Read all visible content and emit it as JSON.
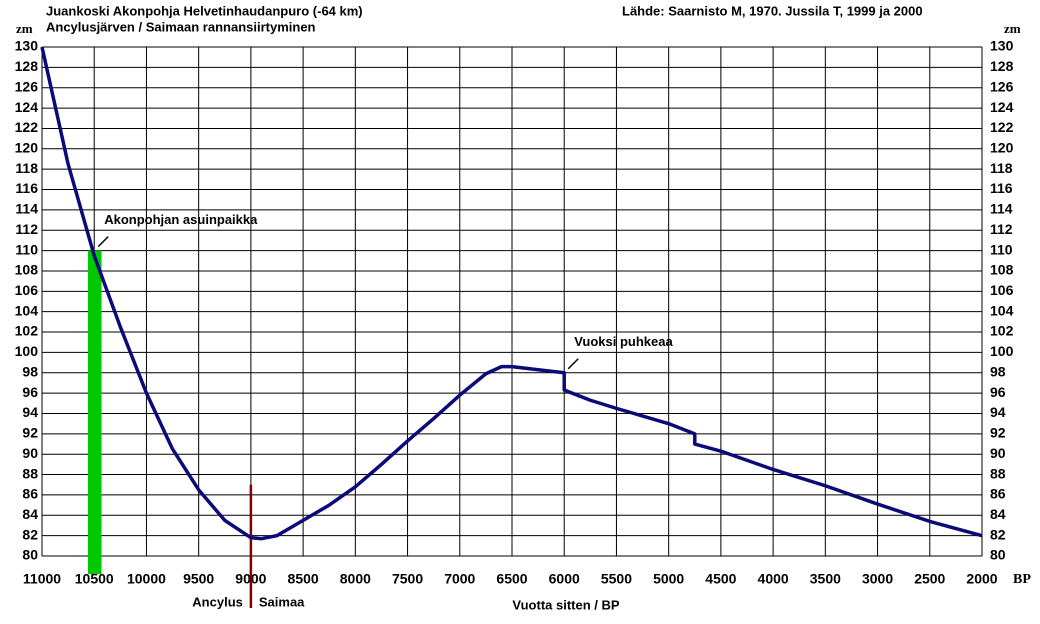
{
  "chart_data": {
    "type": "line",
    "title": "Juankoski Akonpohja Helvetinhaudanpuro (-64 km)",
    "subtitle": "Ancylusjärven / Saimaan rannansiirtyminen",
    "source": "Lähde: Saarnisto M, 1970.  Jussila T, 1999 ja 2000",
    "y_label": "zm",
    "y2_label": "zm",
    "x_unit": "BP",
    "x_label": "Vuotta sitten / BP",
    "xlim": [
      11000,
      2000
    ],
    "xticks": [
      11000,
      10500,
      10000,
      9500,
      9000,
      8500,
      8000,
      7500,
      7000,
      6500,
      6000,
      5500,
      5000,
      4500,
      4000,
      3500,
      3000,
      2500,
      2000
    ],
    "ylim": [
      80,
      130
    ],
    "yticks": [
      80,
      82,
      84,
      86,
      88,
      90,
      92,
      94,
      96,
      98,
      100,
      102,
      104,
      106,
      108,
      110,
      112,
      114,
      116,
      118,
      120,
      122,
      124,
      126,
      128,
      130
    ],
    "grid": true,
    "x": [
      11000,
      10750,
      10500,
      10250,
      10000,
      9750,
      9500,
      9250,
      9000,
      8900,
      8750,
      8500,
      8250,
      8000,
      7750,
      7500,
      7250,
      7000,
      6750,
      6600,
      6500,
      6250,
      6000,
      6000,
      5750,
      5500,
      5000,
      4750,
      4750,
      4500,
      4000,
      3500,
      3000,
      2500,
      2000
    ],
    "series": [
      {
        "color": "#0a0a78",
        "values": [
          130,
          118.5,
          109.5,
          102.5,
          96,
          90.5,
          86.5,
          83.5,
          81.8,
          81.7,
          82,
          83.5,
          85,
          86.8,
          89,
          91.3,
          93.5,
          95.8,
          97.9,
          98.6,
          98.6,
          98.3,
          98,
          96.3,
          95.3,
          94.5,
          93,
          92,
          91,
          90.3,
          88.5,
          86.9,
          85.1,
          83.4,
          82
        ]
      }
    ],
    "highlight_band": {
      "xlim": [
        10560,
        10430
      ],
      "top": 110,
      "color": "#00c800"
    },
    "divider": {
      "x": 9000,
      "top": 87,
      "color": "#800000",
      "labels": [
        "Ancylus",
        "Saimaa"
      ]
    },
    "annotations": [
      {
        "text": "Akonpohjan asuinpaikka",
        "x": 10500,
        "y": 110
      },
      {
        "text": "Vuoksi puhkeaa",
        "x": 6000,
        "y": 98
      }
    ]
  }
}
